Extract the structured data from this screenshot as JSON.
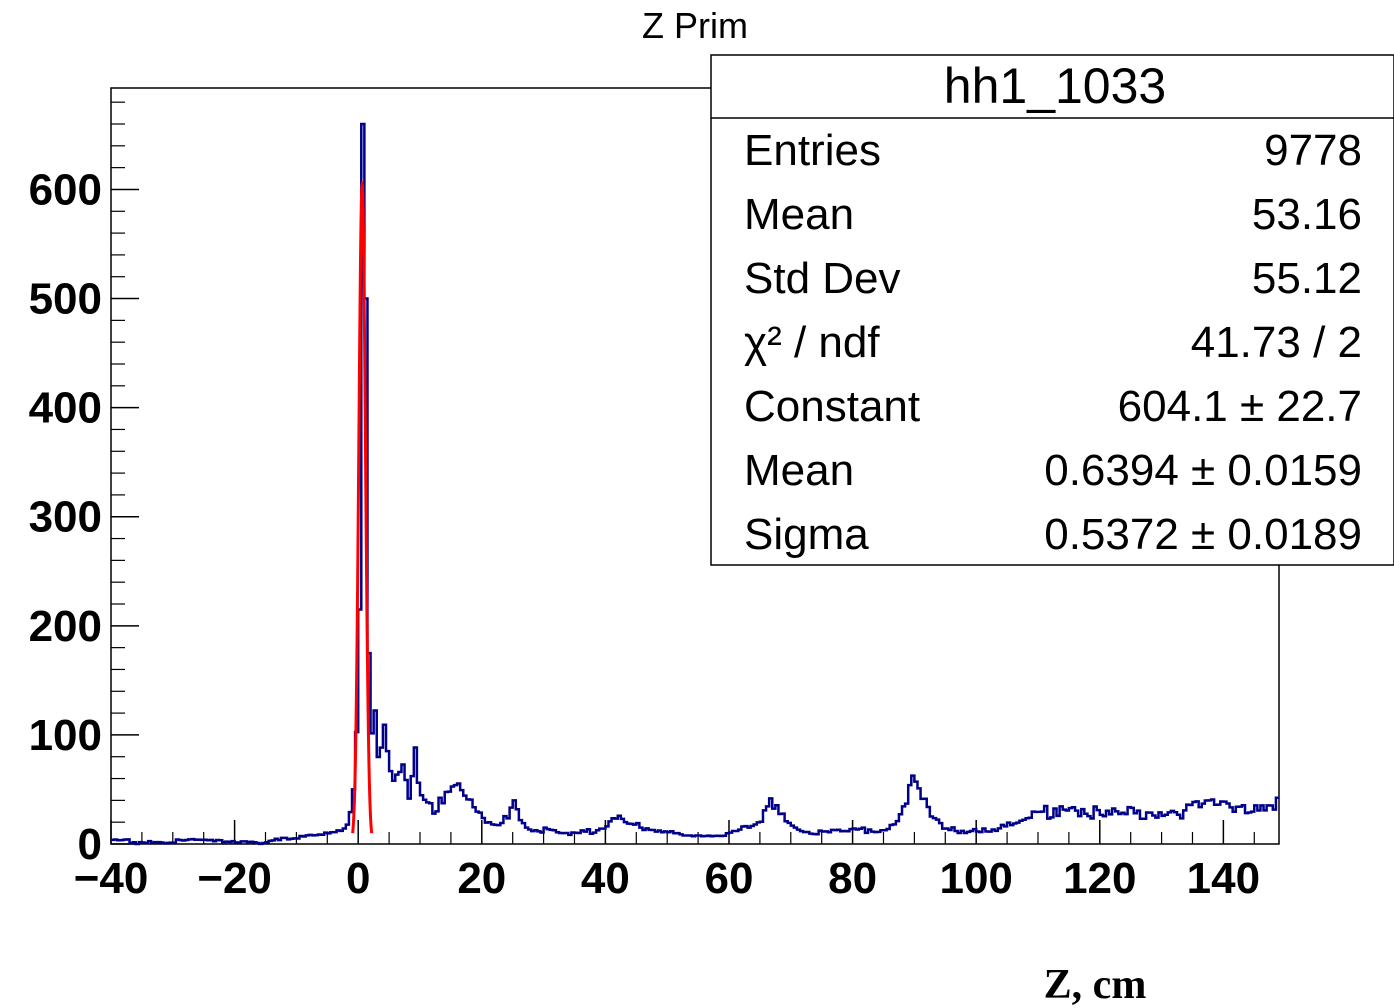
{
  "chart_data": {
    "type": "histogram",
    "title": "Z Prim",
    "xlabel": "Z, cm",
    "ylabel": "",
    "xlim": [
      -40,
      149
    ],
    "ylim": [
      0,
      693
    ],
    "x_ticks": [
      "−40",
      "−20",
      "0",
      "20",
      "40",
      "60",
      "80",
      "100",
      "120",
      "140"
    ],
    "x_tick_values": [
      -40,
      -20,
      0,
      20,
      40,
      60,
      80,
      100,
      120,
      140
    ],
    "y_ticks": [
      "0",
      "100",
      "200",
      "300",
      "400",
      "500",
      "600"
    ],
    "y_tick_values": [
      0,
      100,
      200,
      300,
      400,
      500,
      600
    ],
    "histogram": {
      "color": "#00008b",
      "bin_width": 0.5,
      "points": [
        [
          -40,
          3
        ],
        [
          -38,
          3
        ],
        [
          -36,
          2
        ],
        [
          -34,
          3
        ],
        [
          -32,
          2
        ],
        [
          -30,
          3
        ],
        [
          -28,
          2
        ],
        [
          -26,
          3
        ],
        [
          -24,
          2
        ],
        [
          -22,
          3
        ],
        [
          -20,
          3
        ],
        [
          -18,
          3
        ],
        [
          -16,
          2
        ],
        [
          -14,
          3
        ],
        [
          -12,
          4
        ],
        [
          -10,
          5
        ],
        [
          -8,
          7
        ],
        [
          -6,
          10
        ],
        [
          -4,
          12
        ],
        [
          -3,
          14
        ],
        [
          -2,
          18
        ],
        [
          -1.5,
          35
        ],
        [
          -1,
          65
        ],
        [
          -0.5,
          110
        ],
        [
          0,
          215
        ],
        [
          0.5,
          660
        ],
        [
          1,
          500
        ],
        [
          1.5,
          175
        ],
        [
          2,
          100
        ],
        [
          2.5,
          110
        ],
        [
          3,
          70
        ],
        [
          4,
          100
        ],
        [
          5,
          60
        ],
        [
          6,
          55
        ],
        [
          7,
          70
        ],
        [
          8,
          50
        ],
        [
          9,
          100
        ],
        [
          10,
          45
        ],
        [
          12,
          35
        ],
        [
          14,
          50
        ],
        [
          16,
          45
        ],
        [
          18,
          35
        ],
        [
          20,
          20
        ],
        [
          22,
          15
        ],
        [
          24,
          30
        ],
        [
          25,
          48
        ],
        [
          26,
          25
        ],
        [
          28,
          15
        ],
        [
          30,
          12
        ],
        [
          34,
          8
        ],
        [
          38,
          12
        ],
        [
          40,
          18
        ],
        [
          42,
          30
        ],
        [
          44,
          20
        ],
        [
          46,
          12
        ],
        [
          50,
          10
        ],
        [
          55,
          8
        ],
        [
          60,
          10
        ],
        [
          63,
          15
        ],
        [
          65,
          20
        ],
        [
          67,
          40
        ],
        [
          69,
          25
        ],
        [
          71,
          15
        ],
        [
          75,
          10
        ],
        [
          80,
          12
        ],
        [
          85,
          15
        ],
        [
          87,
          25
        ],
        [
          89,
          55
        ],
        [
          91,
          40
        ],
        [
          93,
          20
        ],
        [
          95,
          12
        ],
        [
          100,
          14
        ],
        [
          105,
          16
        ],
        [
          108,
          20
        ],
        [
          110,
          28
        ],
        [
          112,
          32
        ],
        [
          115,
          38
        ],
        [
          118,
          30
        ],
        [
          120,
          25
        ],
        [
          125,
          28
        ],
        [
          130,
          30
        ],
        [
          135,
          32
        ],
        [
          140,
          35
        ],
        [
          145,
          38
        ],
        [
          148,
          35
        ]
      ]
    },
    "fit": {
      "color": "#ff0000",
      "function": "gaus",
      "constant": 604.1,
      "mean": 0.6394,
      "sigma": 0.5372
    },
    "stats_box": {
      "name": "hh1_1033",
      "rows": [
        {
          "label": "Entries",
          "value": "9778"
        },
        {
          "label": "Mean",
          "value": "53.16"
        },
        {
          "label": "Std Dev",
          "value": "55.12"
        },
        {
          "label": "χ² / ndf",
          "value": "41.73 / 2"
        },
        {
          "label": "Constant",
          "value": "604.1 ± 22.7"
        },
        {
          "label": "Mean",
          "value": "0.6394 ± 0.0159"
        },
        {
          "label": "Sigma",
          "value": "0.5372 ± 0.0189"
        }
      ]
    }
  }
}
